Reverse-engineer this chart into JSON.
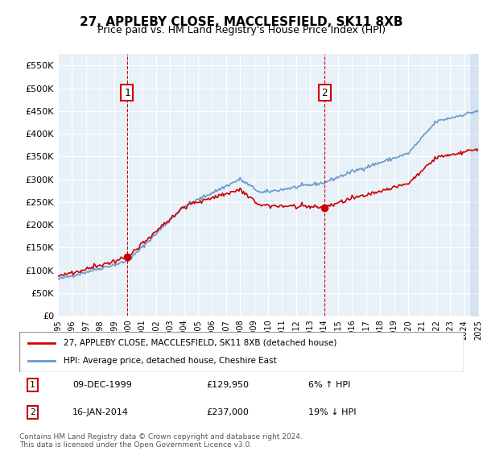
{
  "title": "27, APPLEBY CLOSE, MACCLESFIELD, SK11 8XB",
  "subtitle": "Price paid vs. HM Land Registry's House Price Index (HPI)",
  "sale1_date": "09-DEC-1999",
  "sale1_price": 129950,
  "sale1_label": "6% ↑ HPI",
  "sale1_x": 1999.94,
  "sale2_date": "16-JAN-2014",
  "sale2_price": 237000,
  "sale2_label": "19% ↓ HPI",
  "sale2_x": 2014.04,
  "legend_property": "27, APPLEBY CLOSE, MACCLESFIELD, SK11 8XB (detached house)",
  "legend_hpi": "HPI: Average price, detached house, Cheshire East",
  "footer": "Contains HM Land Registry data © Crown copyright and database right 2024.\nThis data is licensed under the Open Government Licence v3.0.",
  "property_color": "#cc0000",
  "hpi_color": "#6699cc",
  "background_color": "#e8f0f8",
  "ylim": [
    0,
    575000
  ],
  "yticks": [
    0,
    50000,
    100000,
    150000,
    200000,
    250000,
    300000,
    350000,
    400000,
    450000,
    500000,
    550000
  ],
  "xmin": 1995,
  "xmax": 2025
}
